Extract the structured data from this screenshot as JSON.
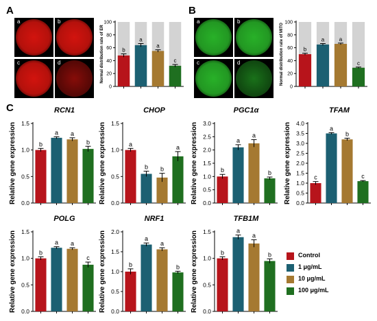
{
  "panel_labels": {
    "A": "A",
    "B": "B",
    "C": "C"
  },
  "cell_labels": [
    "a",
    "b",
    "c",
    "d"
  ],
  "image_colors": {
    "er": "#e1150f",
    "mito": "#2bbd2b"
  },
  "colors": {
    "control": "#b7141b",
    "1": "#1c6072",
    "10": "#a57931",
    "100": "#1f6f20",
    "background_bar": "#d3d3d3"
  },
  "legend": [
    {
      "label": "Control",
      "color": "#b7141b"
    },
    {
      "label": "1 μg/mL",
      "color": "#1c6072"
    },
    {
      "label": "10 μg/mL",
      "color": "#a57931"
    },
    {
      "label": "100 μg/mL",
      "color": "#1f6f20"
    }
  ],
  "chart_data": [
    {
      "id": "er",
      "type": "bar",
      "title": "",
      "xlabel": "",
      "ylabel": "Normal distribution rate of ER",
      "categories": [
        "Control",
        "1 μg/mL",
        "10 μg/mL",
        "100 μg/mL"
      ],
      "values": [
        48,
        64,
        55,
        32
      ],
      "errors": [
        2.5,
        2.5,
        1.8,
        2.0
      ],
      "letters": [
        "b",
        "a",
        "a",
        "c"
      ],
      "ylim": [
        0,
        100
      ],
      "background_bars": true
    },
    {
      "id": "mito",
      "type": "bar",
      "title": "",
      "xlabel": "",
      "ylabel": "Normal distribution rate of MITO",
      "categories": [
        "Control",
        "1 μg/mL",
        "10 μg/mL",
        "100 μg/mL"
      ],
      "values": [
        50,
        65,
        66,
        29
      ],
      "errors": [
        1.5,
        1.5,
        1.2,
        1.0
      ],
      "letters": [
        "b",
        "a",
        "a",
        "c"
      ],
      "ylim": [
        0,
        100
      ],
      "background_bars": true
    },
    {
      "id": "rcn1",
      "type": "bar",
      "title": "RCN1",
      "xlabel": "",
      "ylabel": "Relative gene expression",
      "categories": [
        "Control",
        "1 μg/mL",
        "10 μg/mL",
        "100 μg/mL"
      ],
      "values": [
        1.0,
        1.23,
        1.2,
        1.02
      ],
      "errors": [
        0.03,
        0.02,
        0.03,
        0.05
      ],
      "letters": [
        "b",
        "a",
        "a",
        "b"
      ],
      "ylim": [
        0,
        1.5
      ],
      "ticks": [
        "0.0",
        "0.5",
        "1.0",
        "1.5"
      ]
    },
    {
      "id": "chop",
      "type": "bar",
      "title": "CHOP",
      "xlabel": "",
      "ylabel": "Relative gene expression",
      "categories": [
        "Control",
        "1 μg/mL",
        "10 μg/mL",
        "100 μg/mL"
      ],
      "values": [
        1.0,
        0.55,
        0.48,
        0.88
      ],
      "errors": [
        0.03,
        0.05,
        0.08,
        0.09
      ],
      "letters": [
        "a",
        "b",
        "b",
        "a"
      ],
      "ylim": [
        0,
        1.5
      ],
      "ticks": [
        "0.0",
        "0.5",
        "1.0",
        "1.5"
      ]
    },
    {
      "id": "pgc1a",
      "type": "bar",
      "title": "PGC1α",
      "xlabel": "",
      "ylabel": "Relative gene expression",
      "categories": [
        "Control",
        "1 μg/mL",
        "10 μg/mL",
        "100 μg/mL"
      ],
      "values": [
        1.0,
        2.1,
        2.25,
        0.93
      ],
      "errors": [
        0.08,
        0.1,
        0.14,
        0.05
      ],
      "letters": [
        "b",
        "a",
        "a",
        "b"
      ],
      "ylim": [
        0,
        3.0
      ],
      "ticks": [
        "0.0",
        "0.5",
        "1.0",
        "1.5",
        "2.0",
        "2.5",
        "3.0"
      ]
    },
    {
      "id": "tfam",
      "type": "bar",
      "title": "TFAM",
      "xlabel": "",
      "ylabel": "Relative gene expression",
      "categories": [
        "Control",
        "1 μg/mL",
        "10 μg/mL",
        "100 μg/mL"
      ],
      "values": [
        1.0,
        3.5,
        3.2,
        1.1
      ],
      "errors": [
        0.08,
        0.04,
        0.06,
        0.03
      ],
      "letters": [
        "c",
        "a",
        "b",
        "c"
      ],
      "ylim": [
        0,
        4.0
      ],
      "ticks": [
        "0.0",
        "0.5",
        "1.0",
        "1.5",
        "2.0",
        "2.5",
        "3.0",
        "3.5",
        "4.0"
      ]
    },
    {
      "id": "polg",
      "type": "bar",
      "title": "POLG",
      "xlabel": "",
      "ylabel": "Relative gene expression",
      "categories": [
        "Control",
        "1 μg/mL",
        "10 μg/mL",
        "100 μg/mL"
      ],
      "values": [
        1.0,
        1.2,
        1.18,
        0.88
      ],
      "errors": [
        0.03,
        0.02,
        0.02,
        0.05
      ],
      "letters": [
        "b",
        "a",
        "a",
        "c"
      ],
      "ylim": [
        0,
        1.5
      ],
      "ticks": [
        "0.0",
        "0.5",
        "1.0",
        "1.5"
      ]
    },
    {
      "id": "nrf1",
      "type": "bar",
      "title": "NRF1",
      "xlabel": "",
      "ylabel": "Relative gene expression",
      "categories": [
        "Control",
        "1 μg/mL",
        "10 μg/mL",
        "100 μg/mL"
      ],
      "values": [
        1.0,
        1.68,
        1.56,
        0.98
      ],
      "errors": [
        0.07,
        0.04,
        0.04,
        0.03
      ],
      "letters": [
        "b",
        "a",
        "a",
        "b"
      ],
      "ylim": [
        0,
        2.0
      ],
      "ticks": [
        "0.0",
        "0.5",
        "1.0",
        "1.5",
        "2.0"
      ]
    },
    {
      "id": "tfb1m",
      "type": "bar",
      "title": "TFB1M",
      "xlabel": "",
      "ylabel": "Relative gene expression",
      "categories": [
        "Control",
        "1 μg/mL",
        "10 μg/mL",
        "100 μg/mL"
      ],
      "values": [
        1.0,
        1.4,
        1.28,
        0.95
      ],
      "errors": [
        0.03,
        0.04,
        0.07,
        0.04
      ],
      "letters": [
        "b",
        "a",
        "a",
        "b"
      ],
      "ylim": [
        0,
        1.5
      ],
      "ticks": [
        "0.0",
        "0.5",
        "1.0",
        "1.5"
      ]
    }
  ]
}
